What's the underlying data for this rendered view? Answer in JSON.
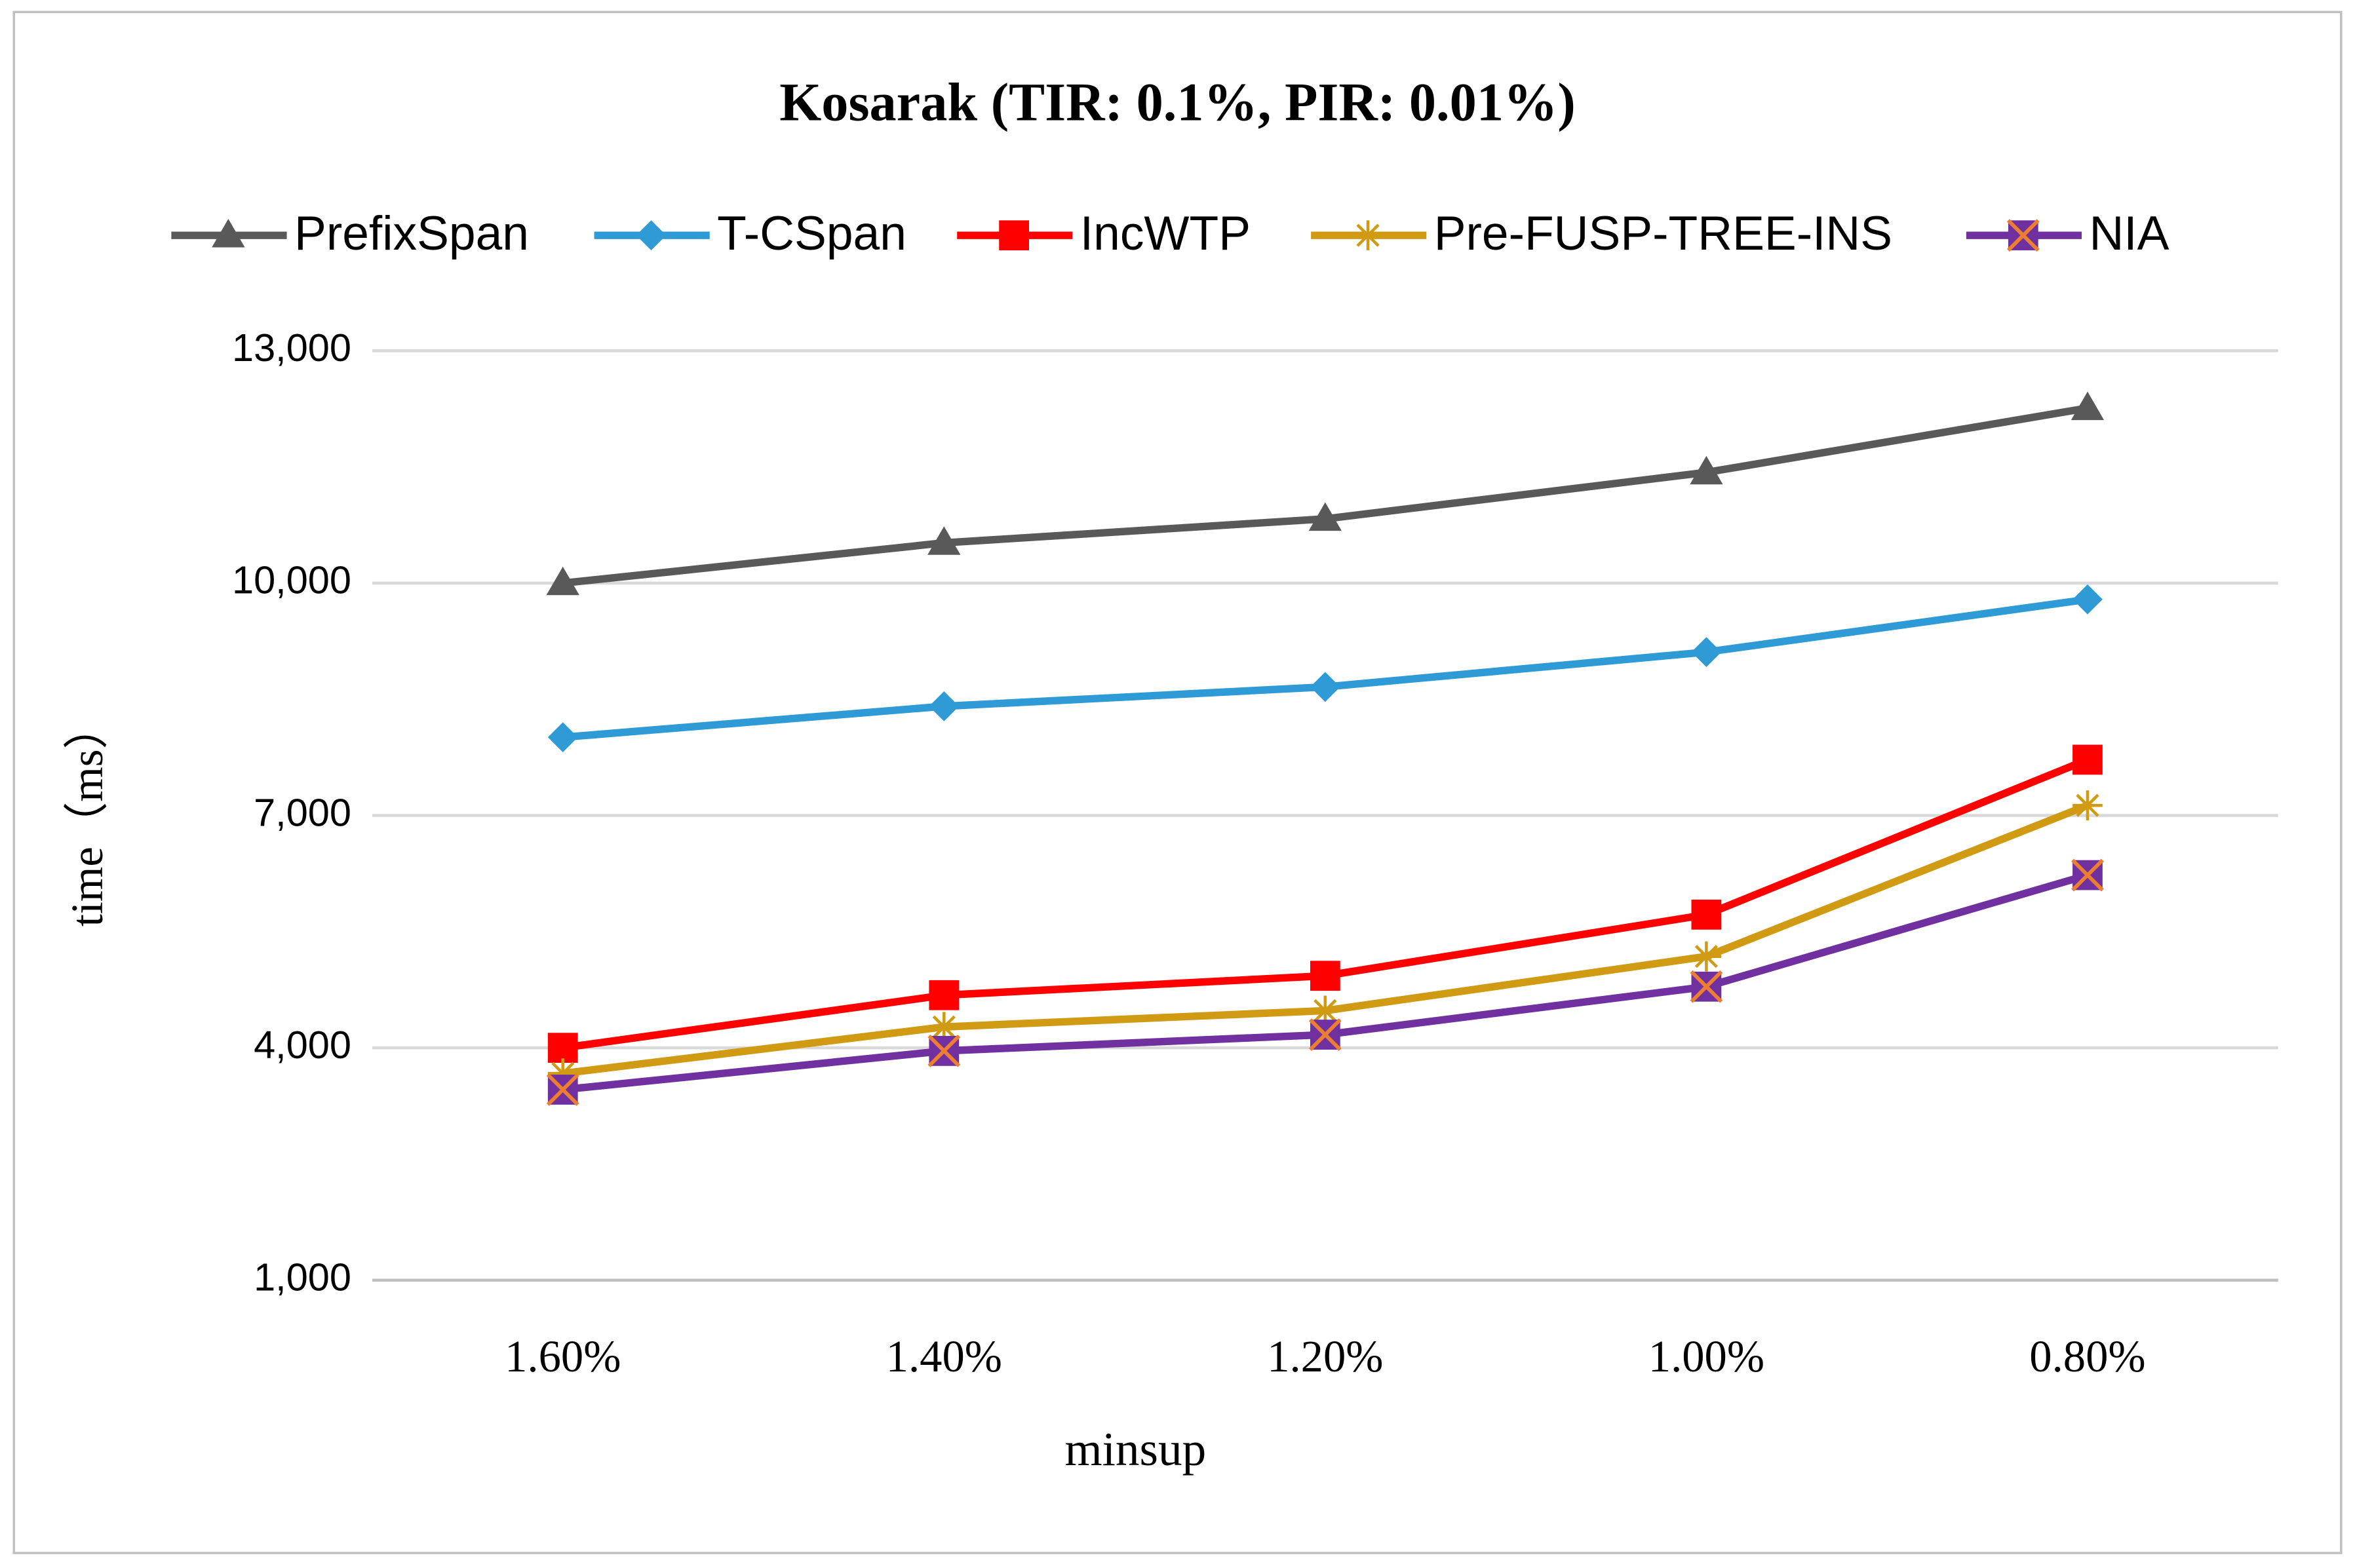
{
  "chart_data": {
    "type": "line",
    "title": "Kosarak (TIR: 0.1%, PIR: 0.01%)",
    "x_label": "minsup",
    "y_label": "time（ms）",
    "categories": [
      "1.60%",
      "1.40%",
      "1.20%",
      "1.00%",
      "0.80%"
    ],
    "series": [
      {
        "name": "PrefixSpan",
        "color": "#595959",
        "marker": "triangle",
        "values": [
          10000,
          10520,
          10830,
          11430,
          12260
        ]
      },
      {
        "name": "T-CSpan",
        "color": "#2e9bd6",
        "marker": "diamond",
        "values": [
          8010,
          8410,
          8660,
          9110,
          9790
        ]
      },
      {
        "name": "IncWTP",
        "color": "#ff0000",
        "marker": "square",
        "values": [
          4000,
          4680,
          4930,
          5720,
          7720
        ]
      },
      {
        "name": "Pre-FUSP-TREE-INS",
        "color": "#d09b12",
        "marker": "star",
        "values": [
          3670,
          4270,
          4480,
          5180,
          7130
        ]
      },
      {
        "name": "NIA",
        "color": "#7030a0",
        "marker": "xsquare",
        "values": [
          3460,
          3960,
          4170,
          4790,
          6230
        ]
      }
    ],
    "ylim": [
      1000,
      13000
    ],
    "yticks": [
      {
        "value": 1000,
        "label": "1,000"
      },
      {
        "value": 4000,
        "label": "4,000"
      },
      {
        "value": 7000,
        "label": "7,000"
      },
      {
        "value": 10000,
        "label": "10,000"
      },
      {
        "value": 13000,
        "label": "13,000"
      }
    ],
    "grid": true,
    "legend": "top"
  }
}
